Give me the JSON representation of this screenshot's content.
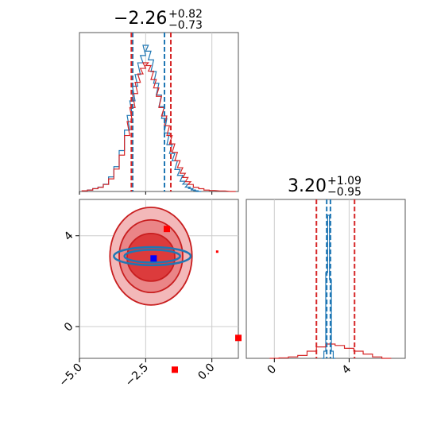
{
  "chart_data": [
    {
      "type": "histogram",
      "panel": "top-left marginal",
      "title_value": "−2.26",
      "title_plus": "+0.82",
      "title_minus": "−0.73",
      "xlim": [
        -5.0,
        1.0
      ],
      "grid": true,
      "series": [
        {
          "color": "#1f77b4",
          "x": [
            -4.6,
            -4.4,
            -4.2,
            -4.0,
            -3.8,
            -3.6,
            -3.4,
            -3.2,
            -3.1,
            -3.0,
            -2.9,
            -2.8,
            -2.7,
            -2.6,
            -2.5,
            -2.4,
            -2.3,
            -2.2,
            -2.1,
            -2.0,
            -1.9,
            -1.8,
            -1.7,
            -1.6,
            -1.5,
            -1.4,
            -1.3,
            -1.2,
            -1.1,
            -1.0,
            -0.9,
            -0.8,
            -0.7,
            -0.6,
            -0.5
          ],
          "density": [
            0.01,
            0.02,
            0.03,
            0.05,
            0.1,
            0.17,
            0.28,
            0.42,
            0.52,
            0.62,
            0.72,
            0.8,
            0.88,
            0.93,
            1.0,
            0.96,
            0.9,
            0.82,
            0.74,
            0.66,
            0.58,
            0.5,
            0.4,
            0.32,
            0.26,
            0.21,
            0.15,
            0.11,
            0.07,
            0.05,
            0.03,
            0.02,
            0.01,
            0.005,
            0.0
          ],
          "quantile_lines": [
            -2.99,
            -1.79
          ]
        },
        {
          "color": "#d62728",
          "x": [
            -4.8,
            -4.6,
            -4.4,
            -4.2,
            -4.0,
            -3.8,
            -3.6,
            -3.4,
            -3.2,
            -3.1,
            -3.0,
            -2.9,
            -2.8,
            -2.7,
            -2.6,
            -2.5,
            -2.4,
            -2.3,
            -2.2,
            -2.1,
            -2.0,
            -1.9,
            -1.8,
            -1.7,
            -1.6,
            -1.5,
            -1.4,
            -1.3,
            -1.2,
            -1.1,
            -1.0,
            -0.9,
            -0.8,
            -0.6,
            -0.4,
            -0.2,
            0.0,
            0.4,
            0.8
          ],
          "density": [
            0.005,
            0.01,
            0.02,
            0.03,
            0.05,
            0.09,
            0.16,
            0.26,
            0.4,
            0.5,
            0.6,
            0.7,
            0.78,
            0.84,
            0.88,
            0.92,
            0.9,
            0.86,
            0.8,
            0.74,
            0.68,
            0.6,
            0.54,
            0.47,
            0.4,
            0.34,
            0.28,
            0.22,
            0.17,
            0.13,
            0.1,
            0.07,
            0.05,
            0.03,
            0.02,
            0.01,
            0.007,
            0.004,
            0.0
          ],
          "quantile_lines": [
            -3.04,
            -1.55
          ]
        }
      ]
    },
    {
      "type": "scatter",
      "panel": "bottom-left 2D contour",
      "xlim": [
        -5.0,
        1.0
      ],
      "ylim": [
        -1.4,
        5.6
      ],
      "xticks": [
        "−5.0",
        "−2.5",
        "0.0"
      ],
      "xtick_values": [
        -5.0,
        -2.5,
        0.0
      ],
      "yticks": [
        "0",
        "4"
      ],
      "ytick_values": [
        0,
        4
      ],
      "grid": true,
      "red_contours": [
        {
          "cx": -2.3,
          "cy": 3.1,
          "rx": 1.55,
          "ry": 2.15,
          "fill": "#f3b8b9"
        },
        {
          "cx": -2.3,
          "cy": 3.1,
          "rx": 1.2,
          "ry": 1.6,
          "fill": "#ea8587"
        },
        {
          "cx": -2.3,
          "cy": 3.05,
          "rx": 0.9,
          "ry": 1.05,
          "fill": "#dc3b3c"
        }
      ],
      "blue_contours": [
        {
          "cx": -2.25,
          "cy": 3.1,
          "rx": 1.45,
          "ry": 0.4
        },
        {
          "cx": -2.25,
          "cy": 3.1,
          "rx": 1.05,
          "ry": 0.28
        }
      ],
      "blue_point": {
        "x": -2.2,
        "y": 3.0
      },
      "red_points": [
        {
          "x": -1.7,
          "y": 4.3
        },
        {
          "x": -1.4,
          "y": -1.9
        },
        {
          "x": 1.0,
          "y": -0.5
        },
        {
          "x": 0.2,
          "y": 3.3
        }
      ]
    },
    {
      "type": "histogram",
      "panel": "bottom-right marginal",
      "title_value": "3.20",
      "title_plus": "+1.09",
      "title_minus": "−0.95",
      "xlim": [
        -1.5,
        7.0
      ],
      "xticks": [
        "0",
        "4"
      ],
      "xtick_values": [
        0,
        4
      ],
      "grid": true,
      "series": [
        {
          "color": "#1f77b4",
          "x": [
            2.6,
            2.7,
            2.8,
            2.9,
            3.0,
            3.1,
            3.2
          ],
          "density": [
            0.0,
            0.05,
            0.6,
            1.0,
            0.55,
            0.05,
            0.0
          ],
          "quantile_lines": [
            2.8,
            3.0
          ]
        },
        {
          "color": "#d62728",
          "x": [
            0.0,
            0.5,
            1.0,
            1.5,
            2.0,
            2.5,
            3.0,
            3.5,
            4.0,
            4.5,
            5.0,
            5.5,
            6.0
          ],
          "density": [
            0.0,
            0.003,
            0.01,
            0.02,
            0.05,
            0.08,
            0.1,
            0.09,
            0.07,
            0.05,
            0.03,
            0.01,
            0.0
          ],
          "quantile_lines": [
            2.25,
            4.29
          ]
        }
      ]
    }
  ]
}
